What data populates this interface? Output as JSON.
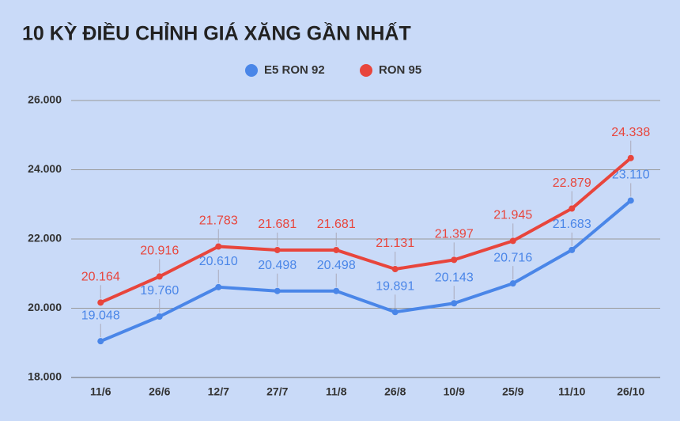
{
  "chart_data": {
    "type": "line",
    "title": "10 KỲ ĐIỀU CHỈNH GIÁ XĂNG GẦN NHẤT",
    "categories": [
      "11/6",
      "26/6",
      "12/7",
      "27/7",
      "11/8",
      "26/8",
      "10/9",
      "25/9",
      "11/10",
      "26/10"
    ],
    "series": [
      {
        "name": "E5 RON 92",
        "color": "#4a86e8",
        "values": [
          19048,
          19760,
          20610,
          20498,
          20498,
          19891,
          20143,
          20716,
          21683,
          23110
        ],
        "value_labels": [
          "19.048",
          "19.760",
          "20.610",
          "20.498",
          "20.498",
          "19.891",
          "20.143",
          "20.716",
          "21.683",
          "23.110"
        ]
      },
      {
        "name": "RON 95",
        "color": "#e8453c",
        "values": [
          20164,
          20916,
          21783,
          21681,
          21681,
          21131,
          21397,
          21945,
          22879,
          24338
        ],
        "value_labels": [
          "20.164",
          "20.916",
          "21.783",
          "21.681",
          "21.681",
          "21.131",
          "21.397",
          "21.945",
          "22.879",
          "24.338"
        ]
      }
    ],
    "ylim": [
      18000,
      26000
    ],
    "yticks": [
      {
        "value": 18000,
        "label": "18.000"
      },
      {
        "value": 20000,
        "label": "20.000"
      },
      {
        "value": 22000,
        "label": "22.000"
      },
      {
        "value": 24000,
        "label": "24.000"
      },
      {
        "value": 26000,
        "label": "26.000"
      }
    ],
    "grid": true,
    "legend": "top"
  }
}
